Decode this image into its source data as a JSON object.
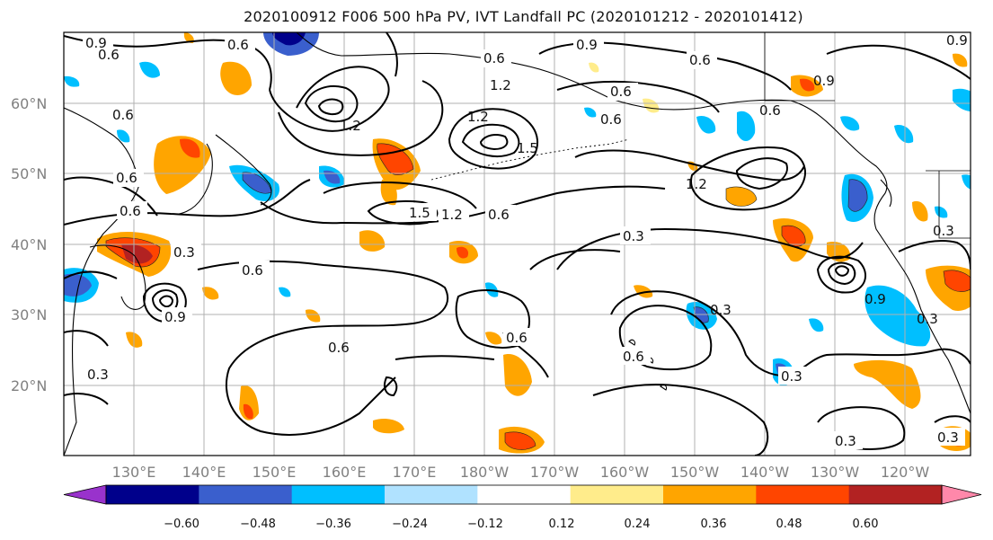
{
  "title": "2020100912 F006 500 hPa PV, IVT Landfall PC (2020101212 - 2020101412)",
  "lat_labels": [
    "60°N",
    "50°N",
    "40°N",
    "30°N",
    "20°N"
  ],
  "lon_labels": [
    "130°E",
    "140°E",
    "150°E",
    "160°E",
    "170°E",
    "180°W",
    "170°W",
    "160°W",
    "150°W",
    "140°W",
    "130°W",
    "120°W"
  ],
  "colorbar": {
    "tick_labels": [
      "−0.60",
      "−0.48",
      "−0.36",
      "−0.24",
      "−0.12",
      "0.12",
      "0.24",
      "0.36",
      "0.48",
      "0.60"
    ],
    "colors": [
      "#9932cc",
      "#00008b",
      "#3a5fcd",
      "#00bfff",
      "#b0e2ff",
      "#ffffff",
      "#ffec8b",
      "#ffa500",
      "#ff4500",
      "#b22222",
      "#ff88aa"
    ]
  },
  "contour_labels": {
    "c1": "0.9",
    "c2": "0.6",
    "c3": "0.6",
    "c4": "0.6",
    "c5": "0.9",
    "c6": "0.6",
    "c7": "0.9",
    "c8": "0.6",
    "c9": "0.6",
    "c10": "0.6",
    "c11": "0.6",
    "c12": "1.2",
    "c13": "1.2",
    "c14": "1.5",
    "c15": "1.2",
    "c16": "0.6",
    "c17": "0.3",
    "c18": "0.6",
    "c19": "0.3",
    "c20": "0.9",
    "c21": "0.6",
    "c22": "0.6",
    "c23": "0.3",
    "c24": "0.6",
    "c25": "0.3",
    "c26": "0.3",
    "c27": "0.3",
    "c28": "0.9",
    "c29": "0.3",
    "c30": "1.5",
    "c31": "1.2",
    "c32": "0.9",
    "c33": "0.6",
    "c34": "0.3",
    "c35": "0.3",
    "c36": "1.2",
    "c37": "0.6"
  }
}
